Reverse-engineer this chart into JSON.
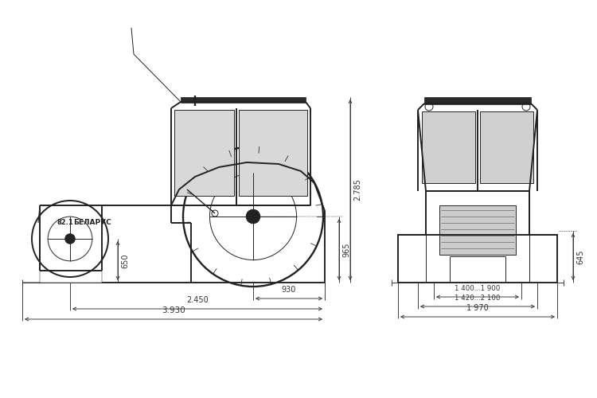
{
  "bg_color": "#ffffff",
  "line_color": "#222222",
  "lw_main": 1.4,
  "lw_thin": 0.7,
  "lw_dim": 0.65,
  "annotations": {
    "label_82": "82.1",
    "label_belarus": "БЕЛАРУС",
    "dim_650": "650",
    "dim_930": "930",
    "dim_2450": "2.450",
    "dim_3930": "3.930",
    "dim_965": "965",
    "dim_2785": "2.785",
    "dim_645": "645",
    "dim_1400": "1 400...1 900",
    "dim_1420": "1 420...2 100",
    "dim_1970": "1 970"
  }
}
